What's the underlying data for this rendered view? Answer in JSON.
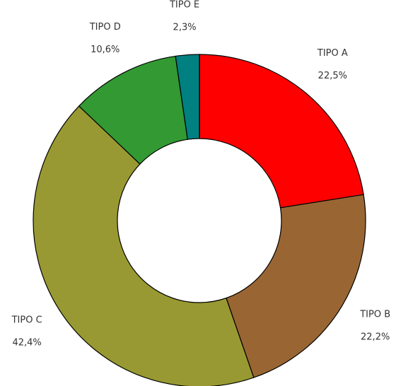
{
  "chart_data": {
    "type": "donut",
    "categories": [
      "TIPO A",
      "TIPO B",
      "TIPO C",
      "TIPO D",
      "TIPO E"
    ],
    "values": [
      22.5,
      22.2,
      42.4,
      10.6,
      2.3
    ],
    "value_labels": [
      "22,5%",
      "22,2%",
      "42,4%",
      "10,6%",
      "2,3%"
    ],
    "colors": [
      "#ff0000",
      "#996633",
      "#999933",
      "#339933",
      "#008080"
    ]
  }
}
